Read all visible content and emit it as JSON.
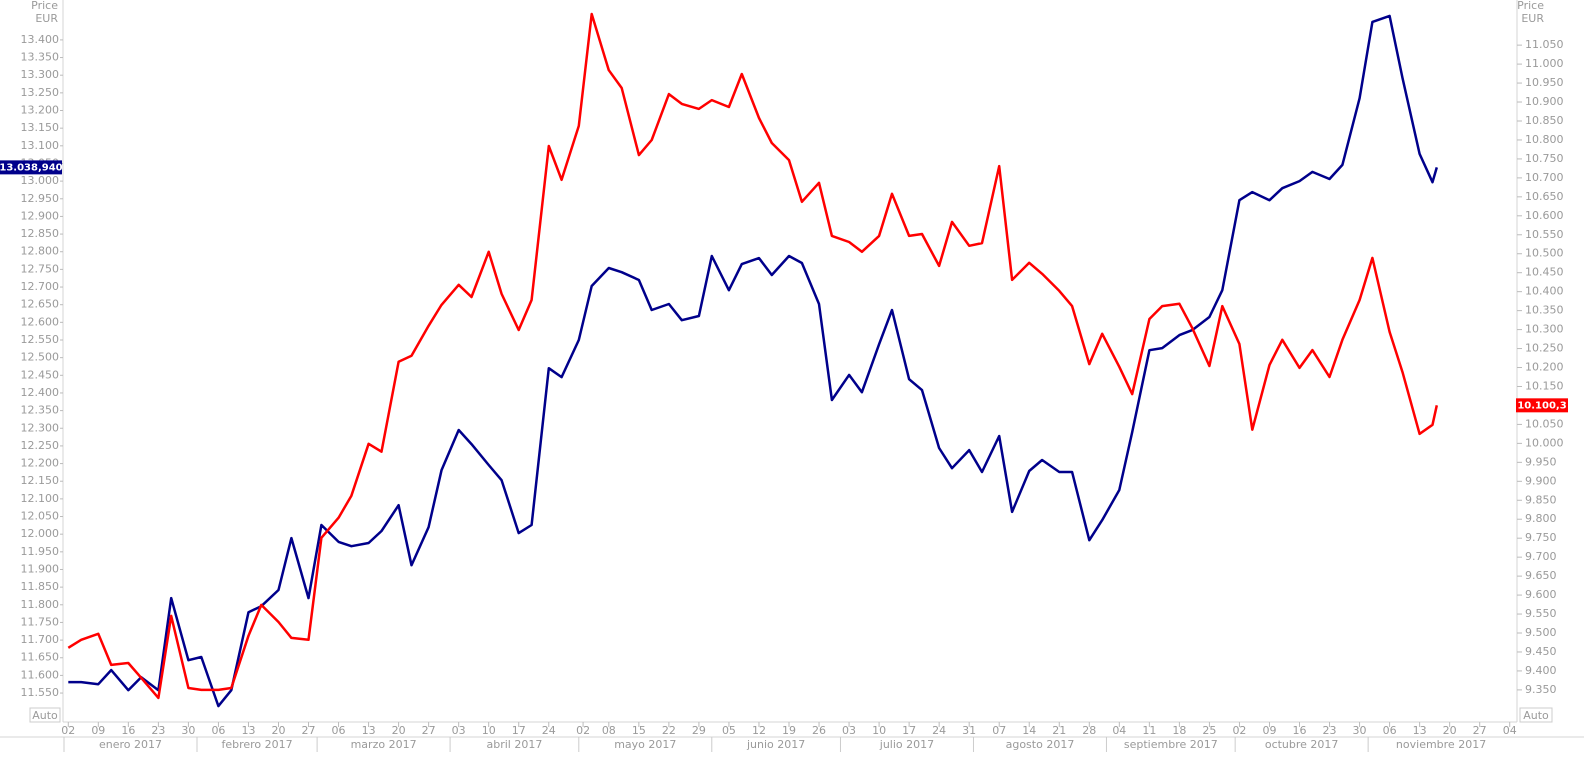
{
  "chart_data": {
    "type": "line",
    "yaxis_title": "Price",
    "yaxis_unit": "EUR",
    "y2axis_title": "Price",
    "y2axis_unit": "EUR",
    "scale_buttons": [
      "Auto",
      "Auto"
    ],
    "xlim": [
      "2017-01-01",
      "2017-12-05"
    ],
    "ylim": [
      11502,
      13513
    ],
    "y2lim": [
      9297,
      11169
    ],
    "x": [
      "2017-01-02",
      "2017-01-05",
      "2017-01-09",
      "2017-01-12",
      "2017-01-16",
      "2017-01-19",
      "2017-01-23",
      "2017-01-26",
      "2017-01-30",
      "2017-02-02",
      "2017-02-06",
      "2017-02-09",
      "2017-02-13",
      "2017-02-16",
      "2017-02-20",
      "2017-02-23",
      "2017-02-27",
      "2017-03-02",
      "2017-03-06",
      "2017-03-09",
      "2017-03-13",
      "2017-03-16",
      "2017-03-20",
      "2017-03-23",
      "2017-03-27",
      "2017-03-30",
      "2017-04-03",
      "2017-04-06",
      "2017-04-10",
      "2017-04-13",
      "2017-04-17",
      "2017-04-20",
      "2017-04-24",
      "2017-04-27",
      "2017-05-01",
      "2017-05-04",
      "2017-05-08",
      "2017-05-11",
      "2017-05-15",
      "2017-05-18",
      "2017-05-22",
      "2017-05-25",
      "2017-05-29",
      "2017-06-01",
      "2017-06-05",
      "2017-06-08",
      "2017-06-12",
      "2017-06-15",
      "2017-06-19",
      "2017-06-22",
      "2017-06-26",
      "2017-06-29",
      "2017-07-03",
      "2017-07-06",
      "2017-07-10",
      "2017-07-13",
      "2017-07-17",
      "2017-07-20",
      "2017-07-24",
      "2017-07-27",
      "2017-07-31",
      "2017-08-03",
      "2017-08-07",
      "2017-08-10",
      "2017-08-14",
      "2017-08-17",
      "2017-08-21",
      "2017-08-24",
      "2017-08-28",
      "2017-08-31",
      "2017-09-04",
      "2017-09-07",
      "2017-09-11",
      "2017-09-14",
      "2017-09-18",
      "2017-09-21",
      "2017-09-25",
      "2017-09-28",
      "2017-10-02",
      "2017-10-05",
      "2017-10-09",
      "2017-10-12",
      "2017-10-16",
      "2017-10-19",
      "2017-10-23",
      "2017-10-26",
      "2017-10-30",
      "2017-11-02",
      "2017-11-06",
      "2017-11-09",
      "2017-11-13",
      "2017-11-16",
      "2017-11-17"
    ],
    "series": [
      {
        "color": "#00008b",
        "last_value_label": "13.038,940",
        "values": [
          11581,
          11581,
          11575,
          11615,
          11558,
          11595,
          11558,
          11819,
          11643,
          11652,
          11513,
          11558,
          11779,
          11796,
          11842,
          11989,
          11819,
          12026,
          11978,
          11966,
          11975,
          12009,
          12082,
          11912,
          12020,
          12181,
          12295,
          12255,
          12196,
          12153,
          12003,
          12026,
          12470,
          12445,
          12550,
          12703,
          12754,
          12742,
          12720,
          12635,
          12652,
          12606,
          12618,
          12788,
          12691,
          12765,
          12782,
          12734,
          12788,
          12768,
          12652,
          12380,
          12451,
          12402,
          12538,
          12635,
          12439,
          12408,
          12244,
          12187,
          12238,
          12176,
          12278,
          12063,
          12179,
          12210,
          12176,
          12176,
          11983,
          12040,
          12125,
          12289,
          12521,
          12527,
          12564,
          12578,
          12615,
          12691,
          12946,
          12969,
          12946,
          12980,
          13000,
          13026,
          13006,
          13046,
          13235,
          13451,
          13468,
          13292,
          13077,
          12997,
          13038.94
        ]
      },
      {
        "color": "#ff0000",
        "axis": "y2",
        "last_value_label": "10.100,3",
        "values": [
          9461,
          9482,
          9498,
          9416,
          9421,
          9382,
          9329,
          9545,
          9355,
          9350,
          9350,
          9355,
          9493,
          9574,
          9529,
          9487,
          9482,
          9751,
          9804,
          9862,
          9999,
          9978,
          10215,
          10231,
          10310,
          10365,
          10418,
          10386,
          10505,
          10394,
          10299,
          10378,
          10784,
          10695,
          10837,
          11132,
          10984,
          10937,
          10760,
          10800,
          10921,
          10895,
          10882,
          10905,
          10887,
          10974,
          10858,
          10792,
          10747,
          10637,
          10687,
          10547,
          10531,
          10505,
          10547,
          10658,
          10547,
          10552,
          10468,
          10584,
          10521,
          10528,
          10731,
          10431,
          10476,
          10447,
          10402,
          10362,
          10209,
          10289,
          10202,
          10130,
          10328,
          10362,
          10368,
          10304,
          10204,
          10362,
          10262,
          10036,
          10207,
          10273,
          10199,
          10246,
          10175,
          10273,
          10378,
          10489,
          10294,
          10188,
          10025,
          10049,
          10100.3
        ]
      }
    ],
    "yticks": [
      {
        "value": 13400,
        "label": "13.400"
      },
      {
        "value": 13350,
        "label": "13.350"
      },
      {
        "value": 13300,
        "label": "13.300"
      },
      {
        "value": 13250,
        "label": "13.250"
      },
      {
        "value": 13200,
        "label": "13.200"
      },
      {
        "value": 13150,
        "label": "13.150"
      },
      {
        "value": 13100,
        "label": "13.100"
      },
      {
        "value": 13050,
        "label": "13.050"
      },
      {
        "value": 13000,
        "label": "13.000"
      },
      {
        "value": 12950,
        "label": "12.950"
      },
      {
        "value": 12900,
        "label": "12.900"
      },
      {
        "value": 12850,
        "label": "12.850"
      },
      {
        "value": 12800,
        "label": "12.800"
      },
      {
        "value": 12750,
        "label": "12.750"
      },
      {
        "value": 12700,
        "label": "12.700"
      },
      {
        "value": 12650,
        "label": "12.650"
      },
      {
        "value": 12600,
        "label": "12.600"
      },
      {
        "value": 12550,
        "label": "12.550"
      },
      {
        "value": 12500,
        "label": "12.500"
      },
      {
        "value": 12450,
        "label": "12.450"
      },
      {
        "value": 12400,
        "label": "12.400"
      },
      {
        "value": 12350,
        "label": "12.350"
      },
      {
        "value": 12300,
        "label": "12.300"
      },
      {
        "value": 12250,
        "label": "12.250"
      },
      {
        "value": 12200,
        "label": "12.200"
      },
      {
        "value": 12150,
        "label": "12.150"
      },
      {
        "value": 12100,
        "label": "12.100"
      },
      {
        "value": 12050,
        "label": "12.050"
      },
      {
        "value": 12000,
        "label": "12.000"
      },
      {
        "value": 11950,
        "label": "11.950"
      },
      {
        "value": 11900,
        "label": "11.900"
      },
      {
        "value": 11850,
        "label": "11.850"
      },
      {
        "value": 11800,
        "label": "11.800"
      },
      {
        "value": 11750,
        "label": "11.750"
      },
      {
        "value": 11700,
        "label": "11.700"
      },
      {
        "value": 11650,
        "label": "11.650"
      },
      {
        "value": 11600,
        "label": "11.600"
      },
      {
        "value": 11550,
        "label": "11.550"
      }
    ],
    "y2ticks": [
      {
        "value": 11050,
        "label": "11.050"
      },
      {
        "value": 11000,
        "label": "11.000"
      },
      {
        "value": 10950,
        "label": "10.950"
      },
      {
        "value": 10900,
        "label": "10.900"
      },
      {
        "value": 10850,
        "label": "10.850"
      },
      {
        "value": 10800,
        "label": "10.800"
      },
      {
        "value": 10750,
        "label": "10.750"
      },
      {
        "value": 10700,
        "label": "10.700"
      },
      {
        "value": 10650,
        "label": "10.650"
      },
      {
        "value": 10600,
        "label": "10.600"
      },
      {
        "value": 10550,
        "label": "10.550"
      },
      {
        "value": 10500,
        "label": "10.500"
      },
      {
        "value": 10450,
        "label": "10.450"
      },
      {
        "value": 10400,
        "label": "10.400"
      },
      {
        "value": 10350,
        "label": "10.350"
      },
      {
        "value": 10300,
        "label": "10.300"
      },
      {
        "value": 10250,
        "label": "10.250"
      },
      {
        "value": 10200,
        "label": "10.200"
      },
      {
        "value": 10150,
        "label": "10.150"
      },
      {
        "value": 10100,
        "label": "10.100"
      },
      {
        "value": 10050,
        "label": "10.050"
      },
      {
        "value": 10000,
        "label": "10.000"
      },
      {
        "value": 9950,
        "label": "9.950"
      },
      {
        "value": 9900,
        "label": "9.900"
      },
      {
        "value": 9850,
        "label": "9.850"
      },
      {
        "value": 9800,
        "label": "9.800"
      },
      {
        "value": 9750,
        "label": "9.750"
      },
      {
        "value": 9700,
        "label": "9.700"
      },
      {
        "value": 9650,
        "label": "9.650"
      },
      {
        "value": 9600,
        "label": "9.600"
      },
      {
        "value": 9550,
        "label": "9.550"
      },
      {
        "value": 9500,
        "label": "9.500"
      },
      {
        "value": 9450,
        "label": "9.450"
      },
      {
        "value": 9400,
        "label": "9.400"
      },
      {
        "value": 9350,
        "label": "9.350"
      }
    ],
    "xticks": [
      {
        "value": "2017-01-02",
        "label": "02"
      },
      {
        "value": "2017-01-09",
        "label": "09"
      },
      {
        "value": "2017-01-16",
        "label": "16"
      },
      {
        "value": "2017-01-23",
        "label": "23"
      },
      {
        "value": "2017-01-30",
        "label": "30"
      },
      {
        "value": "2017-02-06",
        "label": "06"
      },
      {
        "value": "2017-02-13",
        "label": "13"
      },
      {
        "value": "2017-02-20",
        "label": "20"
      },
      {
        "value": "2017-02-27",
        "label": "27"
      },
      {
        "value": "2017-03-06",
        "label": "06"
      },
      {
        "value": "2017-03-13",
        "label": "13"
      },
      {
        "value": "2017-03-20",
        "label": "20"
      },
      {
        "value": "2017-03-27",
        "label": "27"
      },
      {
        "value": "2017-04-03",
        "label": "03"
      },
      {
        "value": "2017-04-10",
        "label": "10"
      },
      {
        "value": "2017-04-17",
        "label": "17"
      },
      {
        "value": "2017-04-24",
        "label": "24"
      },
      {
        "value": "2017-05-02",
        "label": "02"
      },
      {
        "value": "2017-05-08",
        "label": "08"
      },
      {
        "value": "2017-05-15",
        "label": "15"
      },
      {
        "value": "2017-05-22",
        "label": "22"
      },
      {
        "value": "2017-05-29",
        "label": "29"
      },
      {
        "value": "2017-06-05",
        "label": "05"
      },
      {
        "value": "2017-06-12",
        "label": "12"
      },
      {
        "value": "2017-06-19",
        "label": "19"
      },
      {
        "value": "2017-06-26",
        "label": "26"
      },
      {
        "value": "2017-07-03",
        "label": "03"
      },
      {
        "value": "2017-07-10",
        "label": "10"
      },
      {
        "value": "2017-07-17",
        "label": "17"
      },
      {
        "value": "2017-07-24",
        "label": "24"
      },
      {
        "value": "2017-07-31",
        "label": "31"
      },
      {
        "value": "2017-08-07",
        "label": "07"
      },
      {
        "value": "2017-08-14",
        "label": "14"
      },
      {
        "value": "2017-08-21",
        "label": "21"
      },
      {
        "value": "2017-08-28",
        "label": "28"
      },
      {
        "value": "2017-09-04",
        "label": "04"
      },
      {
        "value": "2017-09-11",
        "label": "11"
      },
      {
        "value": "2017-09-18",
        "label": "18"
      },
      {
        "value": "2017-09-25",
        "label": "25"
      },
      {
        "value": "2017-10-02",
        "label": "02"
      },
      {
        "value": "2017-10-09",
        "label": "09"
      },
      {
        "value": "2017-10-16",
        "label": "16"
      },
      {
        "value": "2017-10-23",
        "label": "23"
      },
      {
        "value": "2017-10-30",
        "label": "30"
      },
      {
        "value": "2017-11-06",
        "label": "06"
      },
      {
        "value": "2017-11-13",
        "label": "13"
      },
      {
        "value": "2017-11-20",
        "label": "20"
      },
      {
        "value": "2017-11-27",
        "label": "27"
      },
      {
        "value": "2017-12-04",
        "label": "04"
      }
    ],
    "months": [
      {
        "value": "2017-01-01",
        "label": "enero 2017"
      },
      {
        "value": "2017-02-01",
        "label": "febrero 2017"
      },
      {
        "value": "2017-03-01",
        "label": "marzo 2017"
      },
      {
        "value": "2017-04-01",
        "label": "abril 2017"
      },
      {
        "value": "2017-05-01",
        "label": "mayo 2017"
      },
      {
        "value": "2017-06-01",
        "label": "junio 2017"
      },
      {
        "value": "2017-07-01",
        "label": "julio 2017"
      },
      {
        "value": "2017-08-01",
        "label": "agosto 2017"
      },
      {
        "value": "2017-09-01",
        "label": "septiembre 2017"
      },
      {
        "value": "2017-10-01",
        "label": "octubre 2017"
      },
      {
        "value": "2017-11-01",
        "label": "noviembre 2017"
      }
    ]
  }
}
